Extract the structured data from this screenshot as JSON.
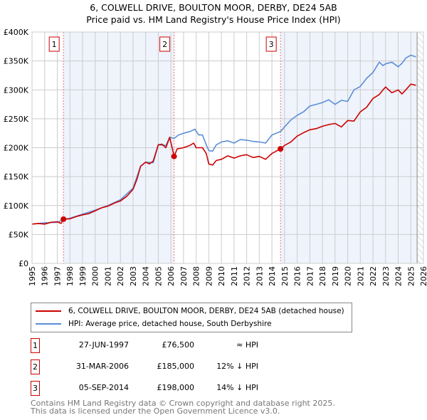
{
  "chart_data": {
    "type": "line",
    "title": "6, COLWELL DRIVE, BOULTON MOOR, DERBY, DE24 5AB",
    "subtitle": "Price paid vs. HM Land Registry's House Price Index (HPI)",
    "xlim": [
      1995,
      2026
    ],
    "ylim": [
      0,
      400000
    ],
    "x_ticks": [
      "1995",
      "1996",
      "1997",
      "1998",
      "1999",
      "2000",
      "2001",
      "2002",
      "2003",
      "2004",
      "2005",
      "2006",
      "2007",
      "2008",
      "2009",
      "2010",
      "2011",
      "2012",
      "2013",
      "2014",
      "2015",
      "2016",
      "2017",
      "2018",
      "2019",
      "2020",
      "2021",
      "2022",
      "2023",
      "2024",
      "2025",
      "2026"
    ],
    "y_ticks": [
      {
        "v": 0,
        "label": "£0"
      },
      {
        "v": 50000,
        "label": "£50K"
      },
      {
        "v": 100000,
        "label": "£100K"
      },
      {
        "v": 150000,
        "label": "£150K"
      },
      {
        "v": 200000,
        "label": "£200K"
      },
      {
        "v": 250000,
        "label": "£250K"
      },
      {
        "v": 300000,
        "label": "£300K"
      },
      {
        "v": 350000,
        "label": "£350K"
      },
      {
        "v": 400000,
        "label": "£400K"
      }
    ],
    "grid": true,
    "series": [
      {
        "name": "6, COLWELL DRIVE, BOULTON MOOR, DERBY, DE24 5AB (detached house)",
        "color": "#cc0000",
        "x": [
          1995,
          1995.5,
          1996,
          1996.5,
          1997,
          1997.3,
          1997.49,
          1998,
          1998.5,
          1999,
          1999.5,
          2000,
          2000.5,
          2001,
          2001.5,
          2002,
          2002.5,
          2003,
          2003.3,
          2003.6,
          2004,
          2004.3,
          2004.6,
          2005,
          2005.3,
          2005.6,
          2005.9,
          2006.1,
          2006.25,
          2006.5,
          2007,
          2007.5,
          2007.8,
          2008,
          2008.5,
          2008.8,
          2009,
          2009.3,
          2009.6,
          2010,
          2010.5,
          2011,
          2011.5,
          2012,
          2012.5,
          2013,
          2013.5,
          2014,
          2014.68,
          2015,
          2015.5,
          2016,
          2016.5,
          2017,
          2017.5,
          2018,
          2018.5,
          2019,
          2019.5,
          2020,
          2020.5,
          2021,
          2021.5,
          2022,
          2022.5,
          2022.8,
          2023,
          2023.5,
          2024,
          2024.3,
          2024.6,
          2025,
          2025.4
        ],
        "y": [
          68000,
          69000,
          68000,
          71000,
          72000,
          69000,
          76500,
          77000,
          81000,
          84000,
          86000,
          91000,
          96000,
          99000,
          104000,
          108000,
          116000,
          128000,
          145000,
          168000,
          175000,
          172000,
          177000,
          205000,
          206000,
          200000,
          218000,
          200000,
          185000,
          198000,
          200000,
          204000,
          208000,
          200000,
          200000,
          190000,
          172000,
          170000,
          178000,
          180000,
          186000,
          182000,
          186000,
          188000,
          183000,
          185000,
          180000,
          190000,
          198000,
          204000,
          210000,
          220000,
          226000,
          231000,
          233000,
          237000,
          240000,
          242000,
          236000,
          247000,
          246000,
          262000,
          270000,
          285000,
          292000,
          300000,
          305000,
          295000,
          300000,
          293000,
          300000,
          310000,
          308000
        ]
      },
      {
        "name": "HPI: Average price, detached house, South Derbyshire",
        "color": "#5b8fd6",
        "x": [
          1995,
          1996,
          1997,
          1997.49,
          1998,
          1999,
          2000,
          2001,
          2002,
          2003,
          2003.6,
          2004,
          2004.6,
          2005,
          2005.6,
          2005.9,
          2006.25,
          2006.6,
          2007,
          2007.5,
          2007.9,
          2008.2,
          2008.5,
          2008.8,
          2009,
          2009.3,
          2009.6,
          2010,
          2010.5,
          2011,
          2011.5,
          2012,
          2012.5,
          2013,
          2013.5,
          2014,
          2014.68,
          2015,
          2015.5,
          2016,
          2016.5,
          2017,
          2017.5,
          2018,
          2018.5,
          2019,
          2019.5,
          2020,
          2020.5,
          2021,
          2021.5,
          2022,
          2022.5,
          2022.8,
          2023,
          2023.5,
          2024,
          2024.3,
          2024.6,
          2025,
          2025.4
        ],
        "y": [
          68000,
          70000,
          71000,
          76000,
          78000,
          85000,
          92000,
          100000,
          110000,
          130000,
          168000,
          175000,
          174000,
          205000,
          204000,
          218000,
          216000,
          222000,
          225000,
          228000,
          232000,
          222000,
          222000,
          205000,
          195000,
          194000,
          205000,
          210000,
          212000,
          208000,
          214000,
          213000,
          211000,
          210000,
          208000,
          222000,
          228000,
          236000,
          248000,
          256000,
          262000,
          272000,
          275000,
          278000,
          283000,
          275000,
          282000,
          280000,
          300000,
          306000,
          320000,
          330000,
          348000,
          342000,
          345000,
          348000,
          340000,
          346000,
          355000,
          360000,
          357000
        ]
      }
    ],
    "sales": [
      {
        "num": "1",
        "date": "27-JUN-1997",
        "x": 1997.49,
        "price": "£76,500",
        "value": 76500,
        "rel": "≈ HPI"
      },
      {
        "num": "2",
        "date": "31-MAR-2006",
        "x": 2006.25,
        "price": "£185,000",
        "value": 185000,
        "rel": "12% ↓ HPI"
      },
      {
        "num": "3",
        "date": "05-SEP-2014",
        "x": 2014.68,
        "price": "£198,000",
        "value": 198000,
        "rel": "14% ↓ HPI"
      }
    ],
    "forecast_from": 2025.5,
    "legend_placement": "below"
  },
  "legend": {
    "property": "6, COLWELL DRIVE, BOULTON MOOR, DERBY, DE24 5AB (detached house)",
    "hpi": "HPI: Average price, detached house, South Derbyshire"
  },
  "footer": {
    "line1": "Contains HM Land Registry data © Crown copyright and database right 2025.",
    "line2": "This data is licensed under the Open Government Licence v3.0."
  }
}
